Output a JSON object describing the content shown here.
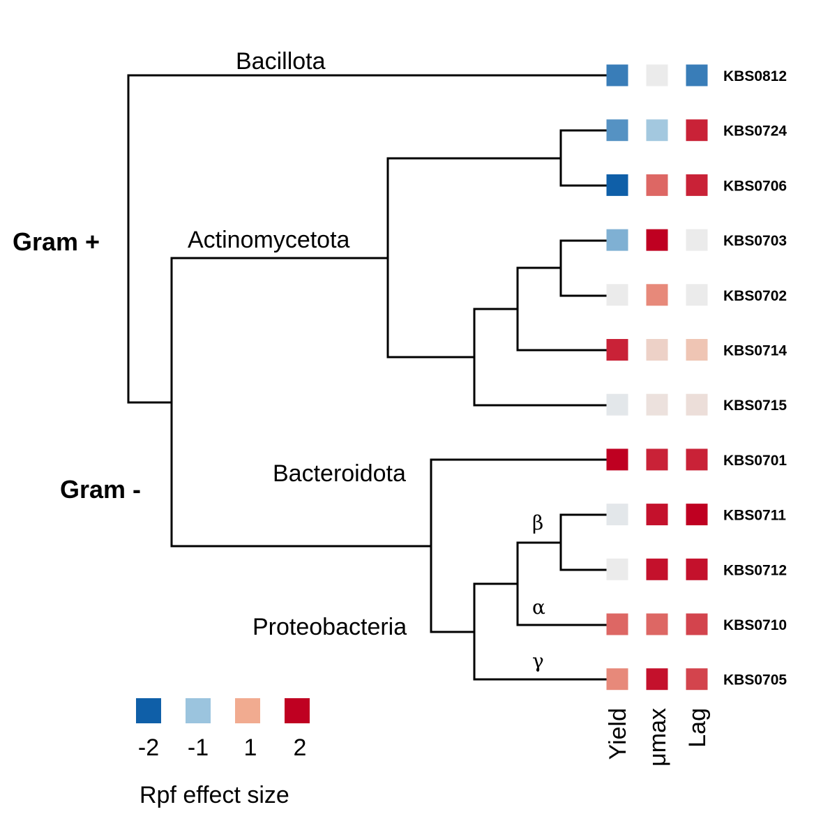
{
  "labels": {
    "gram_pos": "Gram +",
    "gram_neg": "Gram -",
    "clades": {
      "bacillota": "Bacillota",
      "actinomycetota": "Actinomycetota",
      "bacteroidota": "Bacteroidota",
      "proteobacteria": "Proteobacteria"
    },
    "greek": {
      "beta": "β",
      "alpha": "α",
      "gamma": "γ"
    }
  },
  "columns": [
    "Yield",
    "μmax",
    "Lag"
  ],
  "tips": [
    {
      "name": "KBS0812",
      "yield": -1.7,
      "umax": 0.0,
      "lag": -1.7
    },
    {
      "name": "KBS0724",
      "yield": -1.5,
      "umax": -0.9,
      "lag": 1.8
    },
    {
      "name": "KBS0706",
      "yield": -2.0,
      "umax": 1.4,
      "lag": 1.8
    },
    {
      "name": "KBS0703",
      "yield": -1.2,
      "umax": 2.0,
      "lag": 0.0
    },
    {
      "name": "KBS0702",
      "yield": 0.0,
      "umax": 1.2,
      "lag": 0.0
    },
    {
      "name": "KBS0714",
      "yield": 1.8,
      "umax": 0.4,
      "lag": 0.6
    },
    {
      "name": "KBS0715",
      "yield": -0.1,
      "umax": 0.15,
      "lag": 0.2
    },
    {
      "name": "KBS0701",
      "yield": 2.0,
      "umax": 1.8,
      "lag": 1.8
    },
    {
      "name": "KBS0711",
      "yield": -0.1,
      "umax": 1.9,
      "lag": 2.0
    },
    {
      "name": "KBS0712",
      "yield": 0.0,
      "umax": 1.9,
      "lag": 1.9
    },
    {
      "name": "KBS0710",
      "yield": 1.4,
      "umax": 1.4,
      "lag": 1.6
    },
    {
      "name": "KBS0705",
      "yield": 1.2,
      "umax": 1.9,
      "lag": 1.6
    }
  ],
  "legend": {
    "title": "Rpf effect size",
    "items": [
      {
        "label": "-2",
        "value": -2,
        "color": "#0f5fa8"
      },
      {
        "label": "-1",
        "value": -1,
        "color": "#9bc4de"
      },
      {
        "label": "1",
        "value": 1,
        "color": "#f1ab90"
      },
      {
        "label": "2",
        "value": 2,
        "color": "#bf0021"
      }
    ]
  },
  "colors": {
    "zero": "#ebebeb"
  }
}
